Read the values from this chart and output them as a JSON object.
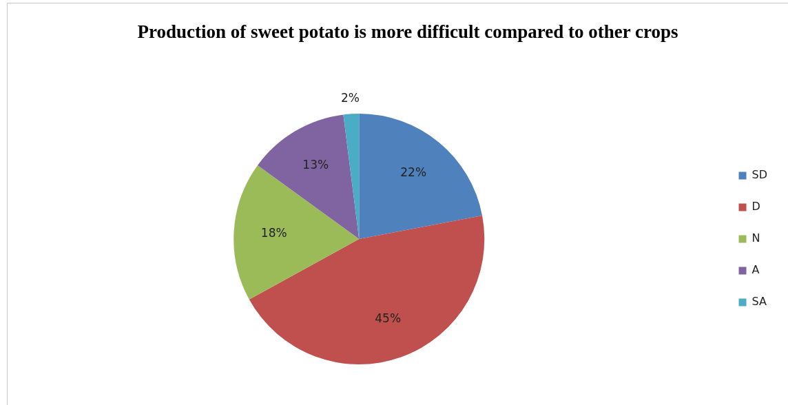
{
  "chart_data": {
    "type": "pie",
    "title": "Production of sweet potato is more difficult compared to other crops",
    "categories": [
      "SD",
      "D",
      "N",
      "A",
      "SA"
    ],
    "values": [
      22,
      45,
      18,
      13,
      2
    ],
    "colors": [
      "#4f81bd",
      "#c0504d",
      "#9bbb59",
      "#8064a2",
      "#4bacc6"
    ],
    "value_labels": [
      "22%",
      "45%",
      "18%",
      "13%",
      "2%"
    ],
    "legend": "right"
  }
}
